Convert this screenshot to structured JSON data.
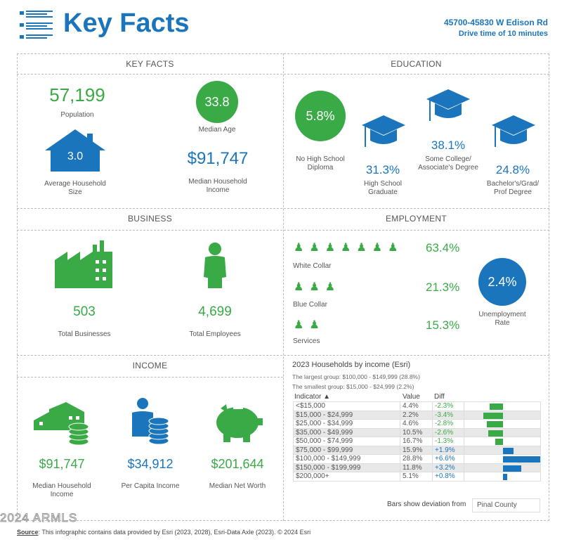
{
  "header": {
    "title": "Key Facts",
    "address": "45700-45830 W Edison Rd",
    "subtitle": "Drive time of 10 minutes",
    "icon": "list-icon"
  },
  "colors": {
    "green": "#3aaa47",
    "blue": "#1a75bc"
  },
  "key_facts": {
    "heading": "KEY FACTS",
    "population": "57,199",
    "population_label": "Population",
    "median_age": "33.8",
    "median_age_label": "Median Age",
    "household_size": "3.0",
    "household_size_label": "Average Household Size",
    "median_income": "$91,747",
    "median_income_label": "Median Household Income"
  },
  "education": {
    "heading": "EDUCATION",
    "items": [
      {
        "value": "5.8%",
        "label": "No High School Diploma"
      },
      {
        "value": "31.3%",
        "label": "High School Graduate"
      },
      {
        "value": "38.1%",
        "label": "Some College/ Associate's Degree"
      },
      {
        "value": "24.8%",
        "label": "Bachelor's/Grad/ Prof Degree"
      }
    ]
  },
  "business": {
    "heading": "BUSINESS",
    "businesses": "503",
    "businesses_label": "Total Businesses",
    "employees": "4,699",
    "employees_label": "Total Employees"
  },
  "employment": {
    "heading": "EMPLOYMENT",
    "white_collar": "63.4%",
    "white_collar_label": "White Collar",
    "blue_collar": "21.3%",
    "blue_collar_label": "Blue Collar",
    "services": "15.3%",
    "services_label": "Services",
    "unemployment": "2.4%",
    "unemployment_label": "Unemployment Rate"
  },
  "income": {
    "heading": "INCOME",
    "median_household": "$91,747",
    "median_household_label": "Median Household Income",
    "per_capita": "$34,912",
    "per_capita_label": "Per Capita Income",
    "net_worth": "$201,644",
    "net_worth_label": "Median Net Worth"
  },
  "households": {
    "title": "2023 Households by income (Esri)",
    "largest": "The largest group: $100,000 - $149,999 (28.8%)",
    "smallest": "The smallest group: $15,000 - $24,999 (2.2%)",
    "columns": [
      "Indicator ▲",
      "Value",
      "Diff"
    ],
    "rows": [
      {
        "indicator": "<$15,000",
        "value": "4.4%",
        "diff": "-2.3%",
        "d": -2.3
      },
      {
        "indicator": "$15,000 - $24,999",
        "value": "2.2%",
        "diff": "-3.4%",
        "d": -3.4
      },
      {
        "indicator": "$25,000 - $34,999",
        "value": "4.6%",
        "diff": "-2.8%",
        "d": -2.8
      },
      {
        "indicator": "$35,000 - $49,999",
        "value": "10.5%",
        "diff": "-2.6%",
        "d": -2.6
      },
      {
        "indicator": "$50,000 - $74,999",
        "value": "16.7%",
        "diff": "-1.3%",
        "d": -1.3
      },
      {
        "indicator": "$75,000 - $99,999",
        "value": "15.9%",
        "diff": "+1.9%",
        "d": 1.9
      },
      {
        "indicator": "$100,000 - $149,999",
        "value": "28.8%",
        "diff": "+6.6%",
        "d": 6.6
      },
      {
        "indicator": "$150,000 - $199,999",
        "value": "11.8%",
        "diff": "+3.2%",
        "d": 3.2
      },
      {
        "indicator": "$200,000+",
        "value": "5.1%",
        "diff": "+0.8%",
        "d": 0.8
      }
    ],
    "deviation_label": "Bars show deviation from",
    "deviation_select": "Pinal County"
  },
  "footer": {
    "source_label": "Source",
    "source_text": ": This infographic contains data provided by Esri (2023, 2028), Esri-Data Axle (2023).  © 2024 Esri",
    "watermark": "2024 ARMLS"
  }
}
